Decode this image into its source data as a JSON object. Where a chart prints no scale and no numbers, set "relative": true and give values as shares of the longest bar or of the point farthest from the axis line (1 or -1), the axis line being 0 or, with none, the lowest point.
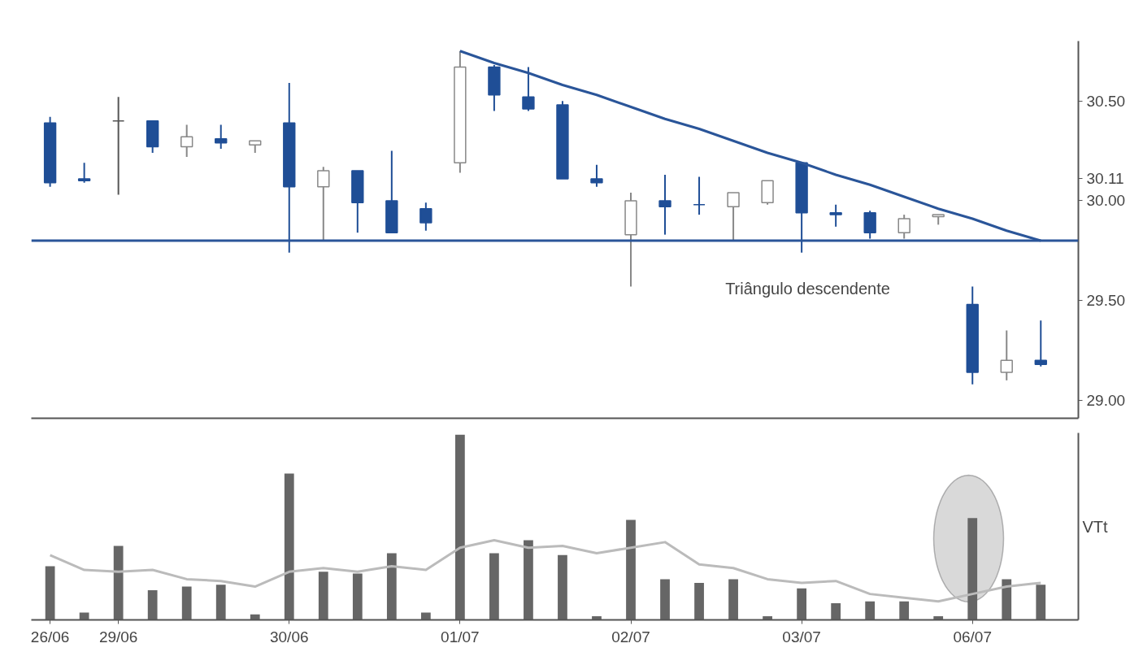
{
  "chart_data": [
    {
      "type": "candlestick",
      "categories": [
        null,
        null,
        null,
        null,
        null,
        null,
        null,
        null,
        null,
        null,
        null,
        null,
        null,
        null,
        null,
        null,
        null,
        null,
        null,
        null,
        null,
        null,
        null,
        null,
        null,
        null,
        null,
        null,
        null,
        null
      ],
      "ohlc": [
        [
          30.39,
          30.42,
          30.07,
          30.09
        ],
        [
          30.11,
          30.19,
          30.09,
          30.1
        ],
        [
          30.4,
          30.52,
          30.03,
          30.4
        ],
        [
          30.4,
          30.4,
          30.24,
          30.27
        ],
        [
          30.27,
          30.38,
          30.22,
          30.32
        ],
        [
          30.31,
          30.38,
          30.26,
          30.29
        ],
        [
          30.28,
          30.3,
          30.24,
          30.3
        ],
        [
          30.39,
          30.59,
          29.74,
          30.07
        ],
        [
          30.07,
          30.17,
          29.8,
          30.15
        ],
        [
          30.15,
          30.15,
          29.84,
          29.99
        ],
        [
          30.0,
          30.25,
          29.84,
          29.84
        ],
        [
          29.96,
          29.99,
          29.85,
          29.89
        ],
        [
          30.19,
          30.75,
          30.14,
          30.67
        ],
        [
          30.67,
          30.68,
          30.45,
          30.53
        ],
        [
          30.52,
          30.67,
          30.45,
          30.46
        ],
        [
          30.48,
          30.5,
          30.11,
          30.11
        ],
        [
          30.11,
          30.18,
          30.07,
          30.09
        ],
        [
          29.83,
          30.04,
          29.57,
          30.0
        ],
        [
          30.0,
          30.13,
          29.83,
          29.97
        ],
        [
          29.98,
          30.12,
          29.93,
          29.98
        ],
        [
          29.97,
          30.04,
          29.8,
          30.04
        ],
        [
          29.99,
          30.1,
          29.98,
          30.1
        ],
        [
          30.19,
          30.19,
          29.74,
          29.94
        ],
        [
          29.94,
          29.98,
          29.87,
          29.93
        ],
        [
          29.94,
          29.95,
          29.81,
          29.84
        ],
        [
          29.84,
          29.93,
          29.81,
          29.91
        ],
        [
          29.92,
          29.93,
          29.88,
          29.93
        ],
        [
          29.48,
          29.57,
          29.08,
          29.14
        ],
        [
          29.14,
          29.35,
          29.1,
          29.2
        ],
        [
          29.2,
          29.4,
          29.17,
          29.18
        ]
      ],
      "colors": [
        "#1f4e96",
        "#1f4e96",
        "#555555",
        "#1f4e96",
        "#ffffff",
        "#1f4e96",
        "#ffffff",
        "#1f4e96",
        "#ffffff",
        "#1f4e96",
        "#1f4e96",
        "#1f4e96",
        "#ffffff",
        "#1f4e96",
        "#1f4e96",
        "#1f4e96",
        "#1f4e96",
        "#ffffff",
        "#1f4e96",
        "#1f4e96",
        "#ffffff",
        "#ffffff",
        "#1f4e96",
        "#1f4e96",
        "#1f4e96",
        "#ffffff",
        "#ffffff",
        "#1f4e96",
        "#ffffff",
        "#1f4e96"
      ],
      "series": [
        {
          "type": "line",
          "color": "#2a5599",
          "values": [
            null,
            null,
            null,
            null,
            null,
            null,
            null,
            null,
            null,
            null,
            null,
            null,
            30.75,
            30.69,
            30.64,
            30.58,
            30.53,
            30.47,
            30.41,
            30.36,
            30.3,
            30.24,
            30.19,
            30.13,
            30.08,
            30.02,
            29.96,
            29.91,
            29.85,
            29.8
          ]
        }
      ],
      "ref_lines": [
        {
          "axis": "y",
          "value": 29.8,
          "color": "#2a5599"
        }
      ],
      "annotations": [
        "Triângulo descendente"
      ],
      "ylim": [
        28.91,
        30.8
      ],
      "yticks": [
        {
          "value": 29,
          "label": "29.00"
        },
        {
          "value": 29.5,
          "label": "29.50"
        },
        {
          "value": 30,
          "label": "30.00"
        },
        {
          "value": 30.11,
          "label": "30.11"
        },
        {
          "value": 30.5,
          "label": "30.50"
        }
      ],
      "tick_labels": "y",
      "grid": false
    },
    {
      "type": "bar",
      "relative": true,
      "ylabel": "VTt",
      "categories": [
        "26/06",
        null,
        "29/06",
        null,
        null,
        null,
        null,
        "30/06",
        null,
        null,
        null,
        null,
        "01/07",
        null,
        null,
        null,
        null,
        "02/07",
        null,
        null,
        null,
        null,
        "03/07",
        null,
        null,
        null,
        null,
        "06/07",
        null,
        null
      ],
      "series": [
        {
          "type": "bar",
          "color": "#666666",
          "values": [
            0.29,
            0.04,
            0.4,
            0.16,
            0.18,
            0.19,
            0.03,
            0.79,
            0.26,
            0.25,
            0.36,
            0.04,
            1.0,
            0.36,
            0.43,
            0.35,
            0.02,
            0.54,
            0.22,
            0.2,
            0.22,
            0.02,
            0.17,
            0.09,
            0.1,
            0.1,
            0.02,
            0.55,
            0.22,
            0.19
          ]
        },
        {
          "type": "line",
          "color": "#bbbbbb",
          "values": [
            0.35,
            0.27,
            0.26,
            0.27,
            0.22,
            0.21,
            0.18,
            0.26,
            0.28,
            0.26,
            0.29,
            0.27,
            0.39,
            0.43,
            0.39,
            0.4,
            0.36,
            0.39,
            0.42,
            0.3,
            0.28,
            0.22,
            0.2,
            0.21,
            0.14,
            0.12,
            0.1,
            0.14,
            0.18,
            0.2
          ]
        }
      ],
      "grid": false
    }
  ]
}
